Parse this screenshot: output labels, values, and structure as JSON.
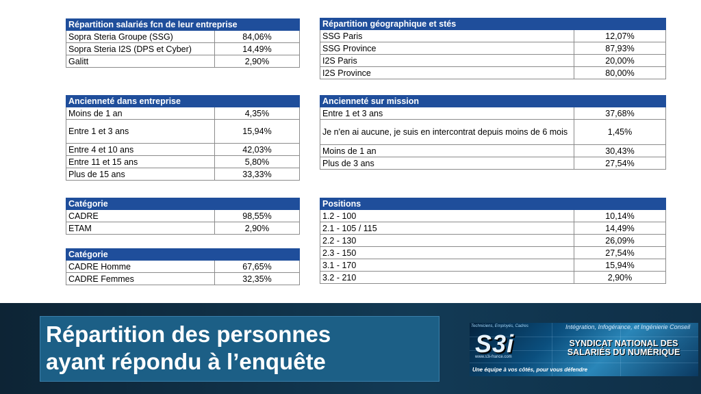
{
  "tables": {
    "company": {
      "header": "Répartition salariés fcn de leur entreprise",
      "rows": [
        {
          "label": "Sopra Steria Groupe (SSG)",
          "value": "84,06%"
        },
        {
          "label": "Sopra Steria I2S (DPS et Cyber)",
          "value": "14,49%"
        },
        {
          "label": "Galitt",
          "value": "2,90%"
        }
      ]
    },
    "geo": {
      "header": "Répartition géographique et stés",
      "rows": [
        {
          "label": "SSG Paris",
          "value": "12,07%"
        },
        {
          "label": "SSG Province",
          "value": "87,93%"
        },
        {
          "label": "I2S Paris",
          "value": "20,00%"
        },
        {
          "label": "I2S Province",
          "value": "80,00%"
        }
      ]
    },
    "seniority_company": {
      "header": "Ancienneté dans entreprise",
      "rows": [
        {
          "label": "Moins de 1 an",
          "value": "4,35%"
        },
        {
          "label": "Entre 1 et 3 ans",
          "value": "15,94%"
        },
        {
          "label": "Entre 4 et 10 ans",
          "value": "42,03%"
        },
        {
          "label": "Entre 11 et 15 ans",
          "value": "5,80%"
        },
        {
          "label": "Plus de 15 ans",
          "value": "33,33%"
        }
      ]
    },
    "seniority_mission": {
      "header": "Ancienneté sur mission",
      "rows": [
        {
          "label": "Entre 1 et 3 ans",
          "value": "37,68%"
        },
        {
          "label": "Je n'en ai aucune, je suis en intercontrat depuis moins de 6 mois",
          "value": "1,45%"
        },
        {
          "label": "Moins de 1 an",
          "value": "30,43%"
        },
        {
          "label": "Plus de 3 ans",
          "value": "27,54%"
        }
      ]
    },
    "category": {
      "header": "Catégorie",
      "rows": [
        {
          "label": "CADRE",
          "value": "98,55%"
        },
        {
          "label": "ETAM",
          "value": "2,90%"
        }
      ]
    },
    "category_gender": {
      "header": "Catégorie",
      "rows": [
        {
          "label": "CADRE Homme",
          "value": "67,65%"
        },
        {
          "label": "CADRE Femmes",
          "value": "32,35%"
        }
      ]
    },
    "positions": {
      "header": "Positions",
      "rows": [
        {
          "label": "1.2 - 100",
          "value": "10,14%"
        },
        {
          "label": "2.1 - 105 / 115",
          "value": "14,49%"
        },
        {
          "label": "2.2 - 130",
          "value": "26,09%"
        },
        {
          "label": "2.3 - 150",
          "value": "27,54%"
        },
        {
          "label": "3.1 - 170",
          "value": "15,94%"
        },
        {
          "label": "3.2 - 210",
          "value": "2,90%"
        }
      ]
    }
  },
  "footer": {
    "title_line1": "Répartition des personnes",
    "title_line2": "ayant répondu à l’enquête"
  },
  "logo": {
    "tagline_top": "Techniciens, Employés, Cadres",
    "brand": "S3i",
    "url": "www.s3i-france.com",
    "subtitle_top": "Intégration, Infogérance, et Ingénierie Conseil",
    "name_line1": "SYNDICAT NATIONAL DES",
    "name_line2": "SALARIÉS DU NUMÉRIQUE",
    "slogan": "Une équipe à vos côtés, pour vous défendre"
  }
}
